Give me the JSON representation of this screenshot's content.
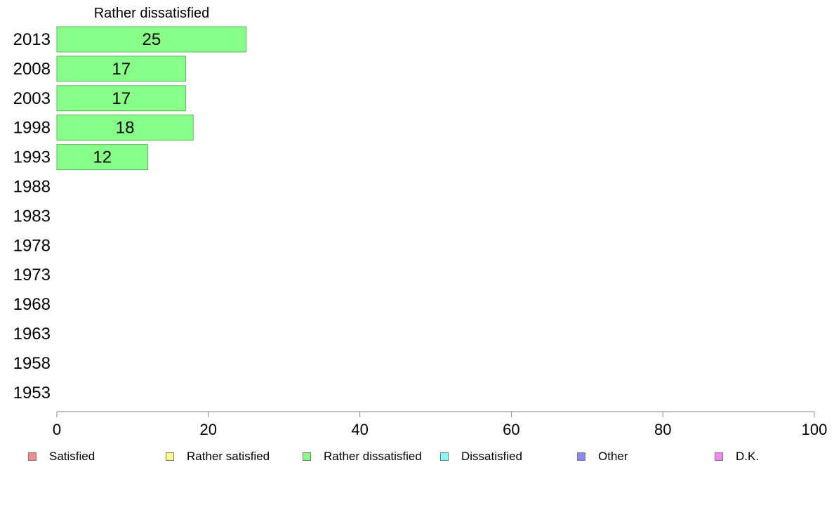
{
  "chart_data": {
    "type": "bar",
    "orientation": "horizontal",
    "title": "Rather dissatisfied",
    "xlabel": "",
    "ylabel": "",
    "categories": [
      "2013",
      "2008",
      "2003",
      "1998",
      "1993",
      "1988",
      "1983",
      "1978",
      "1973",
      "1968",
      "1963",
      "1958",
      "1953"
    ],
    "values": [
      25,
      17,
      17,
      18,
      12,
      null,
      null,
      null,
      null,
      null,
      null,
      null,
      null
    ],
    "value_labels": [
      "25",
      "17",
      "17",
      "18",
      "12",
      "",
      "",
      "",
      "",
      "",
      "",
      "",
      ""
    ],
    "xlim": [
      0,
      100
    ],
    "xticks": [
      0,
      20,
      40,
      60,
      80,
      100
    ],
    "grid": false,
    "bar_color": "#88ff88",
    "bar_edge_color": "#5cb85c",
    "legend_position": "bottom",
    "legend": [
      {
        "label": "Satisfied",
        "color": "#ff8888"
      },
      {
        "label": "Rather satisfied",
        "color": "#ffff88"
      },
      {
        "label": "Rather dissatisfied",
        "color": "#88ff88"
      },
      {
        "label": "Dissatisfied",
        "color": "#88ffff"
      },
      {
        "label": "Other",
        "color": "#8888ff"
      },
      {
        "label": "D.K.",
        "color": "#ff88ff"
      }
    ]
  }
}
